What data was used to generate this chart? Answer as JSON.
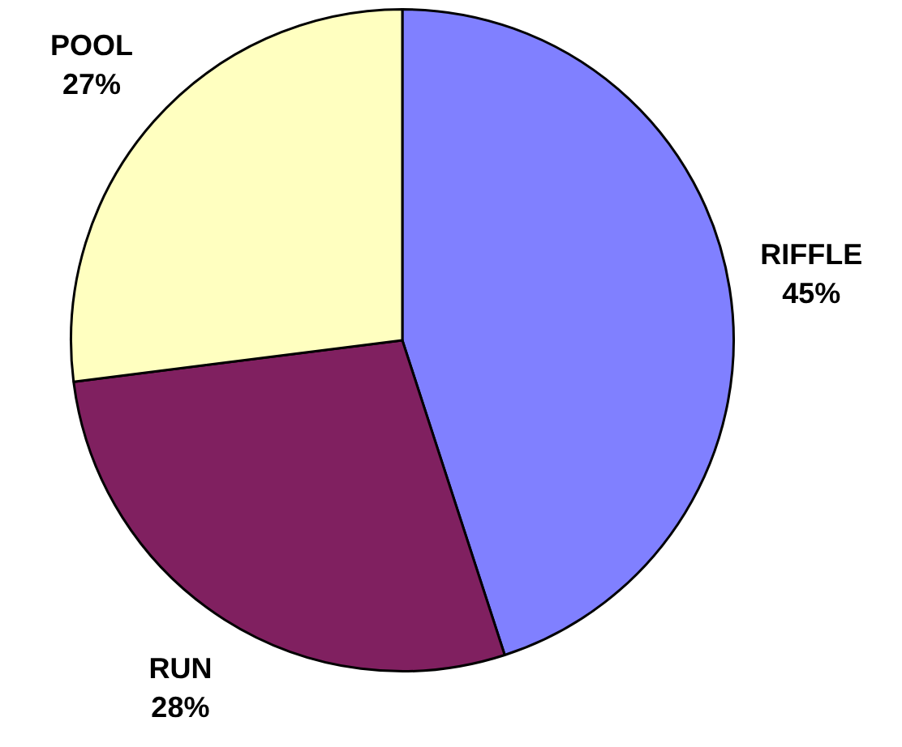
{
  "chart_data": {
    "type": "pie",
    "categories": [
      "RIFFLE",
      "RUN",
      "POOL"
    ],
    "values": [
      45,
      28,
      27
    ],
    "value_labels": [
      "45%",
      "28%",
      "27%"
    ],
    "colors": [
      "#8080ff",
      "#802060",
      "#ffffc0"
    ],
    "legend": false
  }
}
